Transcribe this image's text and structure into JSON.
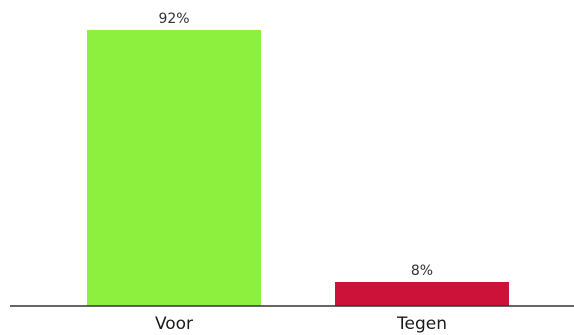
{
  "chart_data": {
    "type": "bar",
    "categories": [
      "Voor",
      "Tegen"
    ],
    "values": [
      92,
      8
    ],
    "value_labels": [
      "92%",
      "8%"
    ],
    "ylim": [
      0,
      100
    ],
    "colors": [
      "#8df03f",
      "#cc1238"
    ],
    "axis_color": "#333333",
    "grid": false,
    "legend": "none"
  }
}
